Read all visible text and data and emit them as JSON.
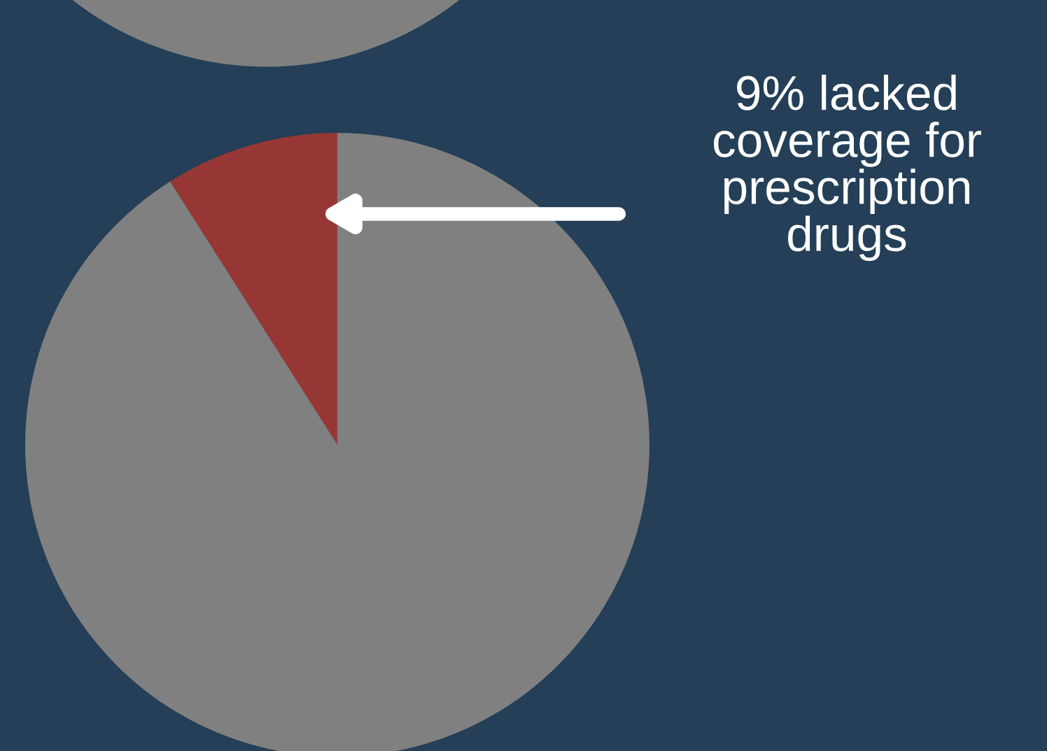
{
  "chart_data": {
    "type": "pie",
    "categories": [
      null,
      null
    ],
    "values": [
      9,
      91
    ],
    "colors": [
      "#973735",
      "#808080"
    ],
    "annotations": [
      "9% lacked coverage for prescription drugs"
    ]
  }
}
